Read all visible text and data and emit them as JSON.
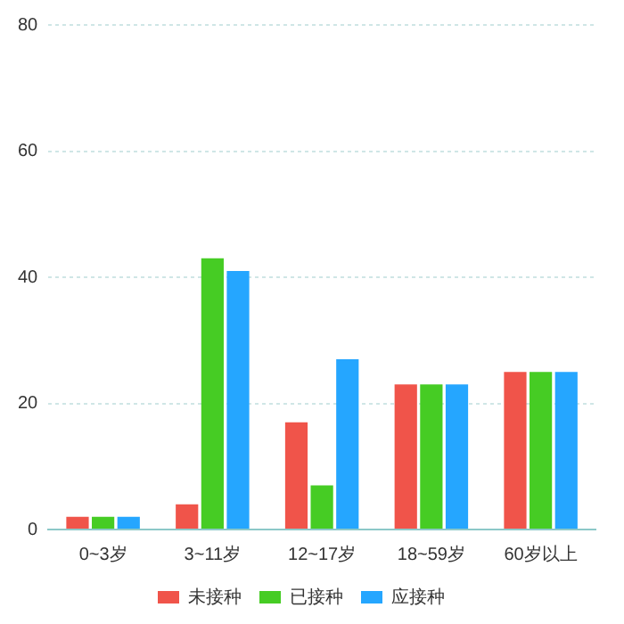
{
  "chart_data": {
    "type": "bar",
    "categories": [
      "0~3岁",
      "3~11岁",
      "12~17岁",
      "18~59岁",
      "60岁以上"
    ],
    "series": [
      {
        "name": "未接种",
        "color": "#f0544a",
        "values": [
          2,
          4,
          17,
          23,
          25
        ]
      },
      {
        "name": "已接种",
        "color": "#46cc24",
        "values": [
          2,
          43,
          7,
          23,
          25
        ]
      },
      {
        "name": "应接种",
        "color": "#25a6ff",
        "values": [
          2,
          41,
          27,
          23,
          25
        ]
      }
    ],
    "ylim": [
      0,
      80
    ],
    "yticks": [
      0,
      20,
      40,
      60,
      80
    ],
    "grid": "y",
    "legend": "bottom"
  }
}
